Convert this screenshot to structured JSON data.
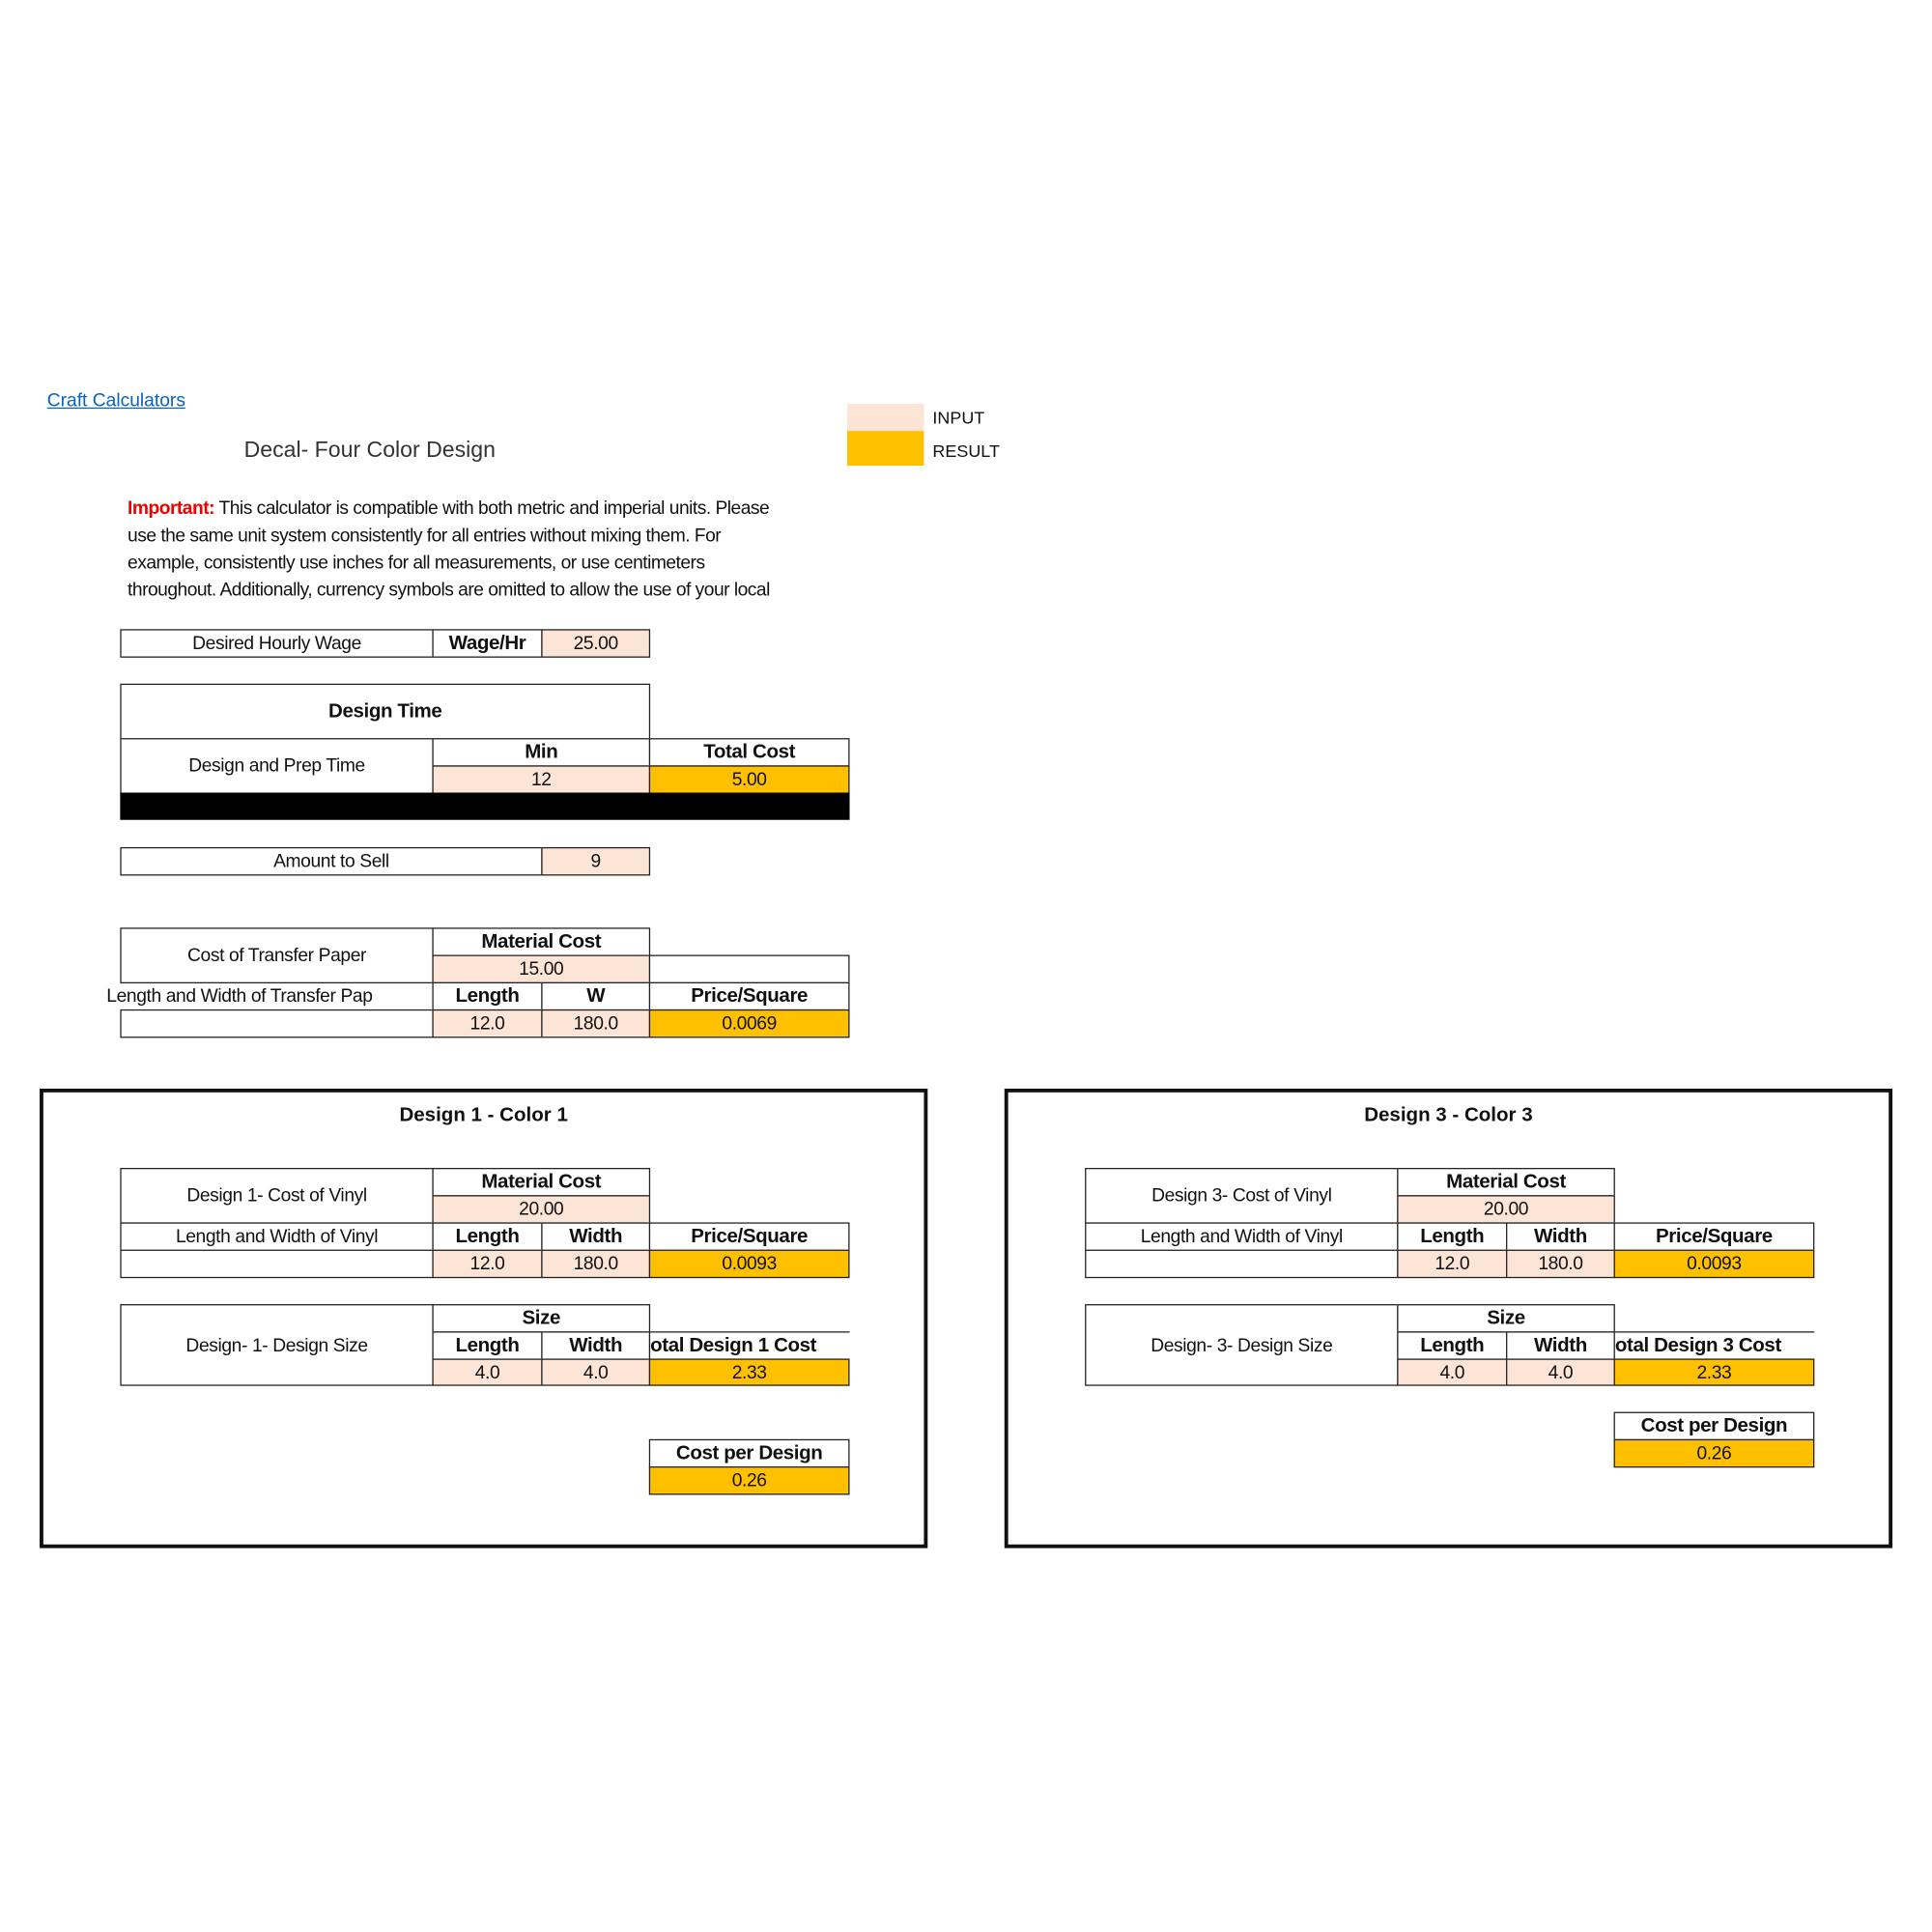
{
  "header": {
    "link": "Craft Calculators",
    "title": "Decal- Four Color Design"
  },
  "legend": {
    "input_label": "INPUT",
    "result_label": "RESULT",
    "input_color": "#fce4d6",
    "result_color": "#ffc000"
  },
  "notice": {
    "label": "Important:",
    "lines": [
      "This calculator is compatible with both metric and imperial units. Please",
      "use the same unit system consistently for all entries without mixing them. For",
      "example, consistently use inches for all measurements, or use centimeters",
      "throughout. Additionally, currency symbols are omitted to allow the use of your local"
    ]
  },
  "wage": {
    "label": "Desired Hourly Wage",
    "unit": "Wage/Hr",
    "value": "25.00"
  },
  "design_time": {
    "title": "Design Time",
    "label": "Design and Prep Time",
    "min_header": "Min",
    "min_value": "12",
    "total_header": "Total Cost",
    "total_value": "5.00"
  },
  "amount": {
    "label": "Amount to Sell",
    "value": "9"
  },
  "transfer": {
    "label": "Cost of Transfer Paper",
    "material_header": "Material Cost",
    "material_value": "15.00",
    "dims_label": "Length and Width of Transfer Pap",
    "length_header": "Length",
    "width_header": "W",
    "price_header": "Price/Square",
    "length": "12.0",
    "width": "180.0",
    "price": "0.0069"
  },
  "designs": [
    {
      "title": "Design 1 - Color 1",
      "vinyl_label": "Design 1- Cost of Vinyl",
      "material_header": "Material Cost",
      "material_value": "20.00",
      "dims_label": "Length and Width of Vinyl",
      "length_header": "Length",
      "width_header": "Width",
      "price_header": "Price/Square",
      "length": "12.0",
      "width": "180.0",
      "price": "0.0093",
      "size_label": "Design- 1- Design Size",
      "size_header": "Size",
      "size_length": "4.0",
      "size_width": "4.0",
      "total_header": "otal Design 1 Cost",
      "total_value": "2.33",
      "cpd_header": "Cost per Design",
      "cpd_value": "0.26"
    },
    {
      "title": "Design 3 - Color 3",
      "vinyl_label": "Design 3- Cost of Vinyl",
      "material_header": "Material Cost",
      "material_value": "20.00",
      "dims_label": "Length and Width of Vinyl",
      "length_header": "Length",
      "width_header": "Width",
      "price_header": "Price/Square",
      "length": "12.0",
      "width": "180.0",
      "price": "0.0093",
      "size_label": "Design- 3- Design Size",
      "size_header": "Size",
      "size_length": "4.0",
      "size_width": "4.0",
      "total_header": "otal Design 3 Cost",
      "total_value": "2.33",
      "cpd_header": "Cost per Design",
      "cpd_value": "0.26"
    }
  ]
}
